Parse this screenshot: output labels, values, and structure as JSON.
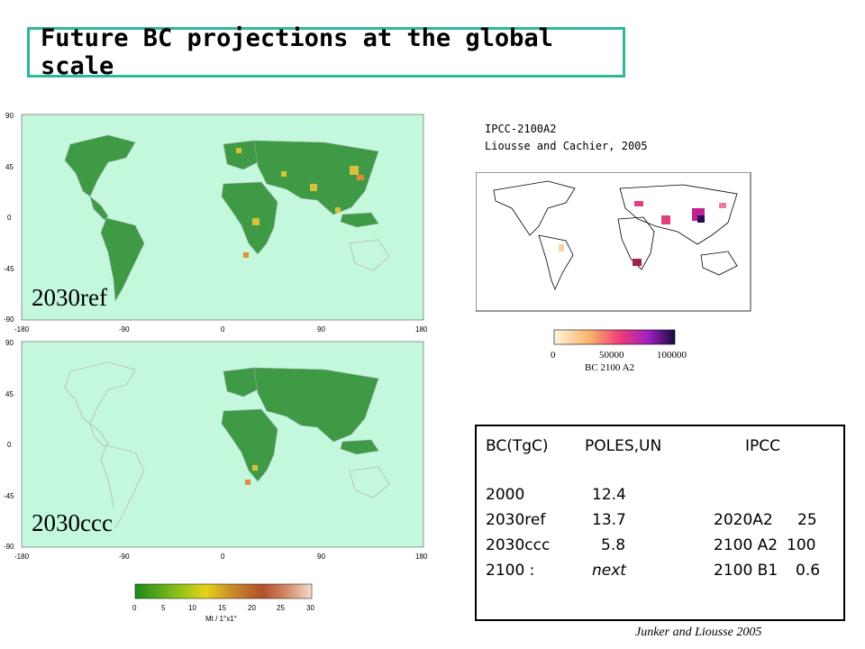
{
  "title": "Future BC projections at the global scale",
  "map_top": {
    "label": "2030ref",
    "y_ticks": [
      "90",
      "45",
      "0",
      "-45",
      "-90"
    ],
    "x_ticks": [
      "-180",
      "-90",
      "0",
      "90",
      "180"
    ],
    "ocean_color": "#c3f8dc",
    "land_color": "#3f9a45"
  },
  "map_bottom": {
    "label": "2030ccc",
    "y_ticks": [
      "90",
      "45",
      "0",
      "-45",
      "-90"
    ],
    "x_ticks": [
      "-180",
      "-90",
      "0",
      "90",
      "180"
    ]
  },
  "colorbar_bottom": {
    "ticks": [
      "0",
      "5",
      "10",
      "15",
      "20",
      "25",
      "30"
    ],
    "unit": "Mt / 1°x1°",
    "colors": [
      "#1a8a1a",
      "#8fc21a",
      "#e6d21a",
      "#c98a2a",
      "#b0502a",
      "#d48a6a",
      "#f4dccc"
    ]
  },
  "ipcc_credit": {
    "line1": "IPCC-2100A2",
    "line2": "Liousse and Cachier, 2005"
  },
  "colorbar_right": {
    "ticks": [
      "0",
      "50000",
      "100000"
    ],
    "label": "BC 2100 A2",
    "colors": [
      "#fff7dc",
      "#fbb06a",
      "#ee3a7a",
      "#a020c0",
      "#1a0a40"
    ]
  },
  "table": {
    "header": {
      "c1": "BC(TgC)",
      "c2": "POLES,UN",
      "c3": "IPCC"
    },
    "rows": [
      {
        "c1": "2000",
        "c2": "12.4",
        "c3a": "",
        "c3b": ""
      },
      {
        "c1": "2030ref",
        "c2": "13.7",
        "c3a": "2020A2",
        "c3b": "25"
      },
      {
        "c1": "2030ccc",
        "c2": "5.8",
        "c3a": "2100 A2",
        "c3b": "100"
      },
      {
        "c1": "2100 :",
        "c2": "next",
        "c3a": "2100 B1",
        "c3b": "0.6"
      }
    ]
  },
  "footer": "Junker and Liousse 2005"
}
